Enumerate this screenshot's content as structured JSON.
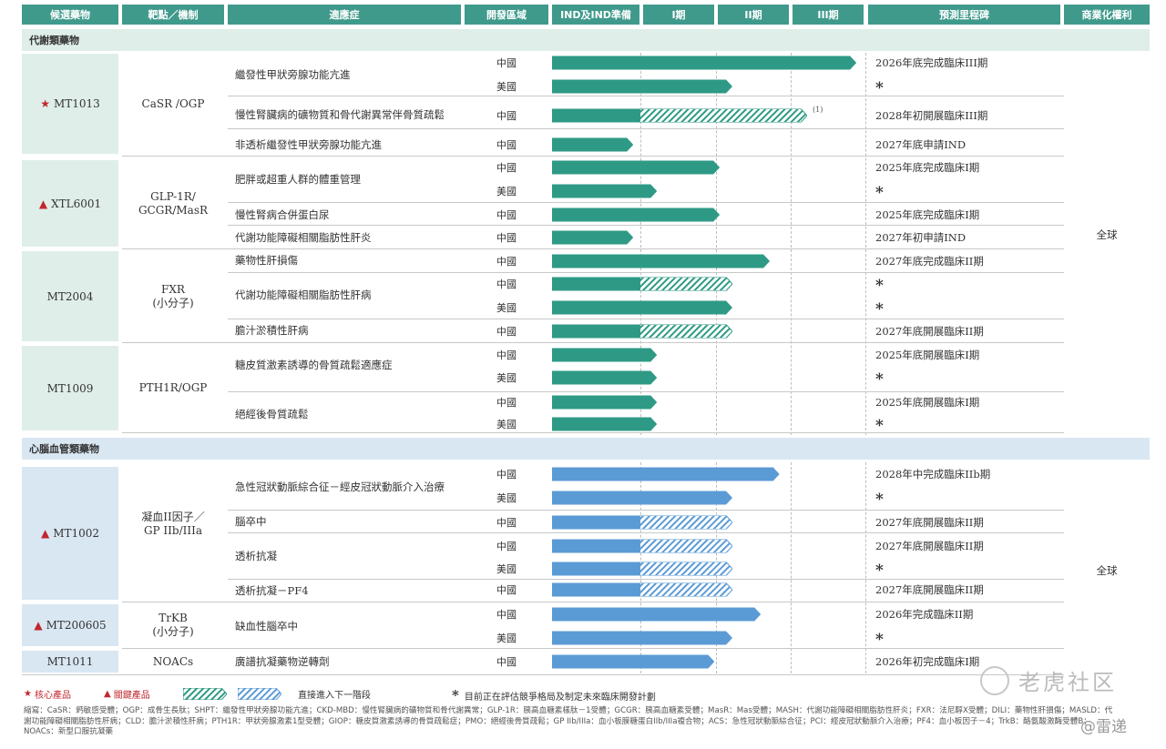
{
  "headers": [
    "候選藥物",
    "靶點／機制",
    "適應症",
    "開發區域",
    "IND及IND準備",
    "I期",
    "II期",
    "III期",
    "預測里程碑",
    "商業化權利"
  ],
  "sections": {
    "metabolic": "代謝類藥物",
    "cardiovascular": "心腦血管類藥物"
  },
  "candidates": [
    {
      "name": "MT1013",
      "marker": "★"
    },
    {
      "name": "XTL6001",
      "marker": "▲"
    },
    {
      "name": "MT2004",
      "marker": ""
    },
    {
      "name": "MT1009",
      "marker": ""
    },
    {
      "name": "MT1002",
      "marker": "▲"
    },
    {
      "name": "MT200605",
      "marker": "▲"
    },
    {
      "name": "MT1011",
      "marker": ""
    }
  ],
  "targets": [
    "CaSR /OGP",
    "GLP-1R/\nGCGR/MasR",
    "FXR\n(小分子)",
    "PTH1R/OGP",
    "凝血II因子／\nGP IIb/IIIa",
    "TrKB\n(小分子)",
    "NOACs"
  ],
  "indications": [
    "繼發性甲狀旁腺功能亢進",
    "慢性腎臟病的礦物質和骨代謝異常伴骨質疏鬆",
    "非透析繼發性甲狀旁腺功能亢進",
    "肥胖或超重人群的體重管理",
    "慢性腎病合併蛋白尿",
    "代謝功能障礙相關脂肪性肝炎",
    "藥物性肝損傷",
    "代謝功能障礙相關脂肪性肝病",
    "膽汁淤積性肝病",
    "糖皮質激素誘導的骨質疏鬆適應症",
    "絕經後骨質疏鬆",
    "急性冠狀動脈綜合征－經皮冠狀動脈介入治療",
    "腦卒中",
    "透析抗凝",
    "透析抗凝－PF4",
    "缺血性腦卒中",
    "廣譜抗凝藥物逆轉劑"
  ],
  "regions": {
    "cn": "中國",
    "us": "美國"
  },
  "colors": {
    "green": "#2e9a85",
    "blue": "#5b9bd5",
    "header": "#3f9a8c",
    "star": "#c0272d"
  },
  "pipeline_rows": [
    {
      "region": "cn",
      "progress": 3.88,
      "hatch": null,
      "color": "green",
      "milestone": "2026年底完成臨床III期"
    },
    {
      "region": "us",
      "progress": 2.22,
      "hatch": null,
      "color": "green",
      "milestone": "*"
    },
    {
      "region": "cn",
      "progress": 3.22,
      "hatch": [
        1.0,
        3.22
      ],
      "color": "green",
      "milestone": "2028年初開展臨床III期",
      "note": "(1)"
    },
    {
      "region": "cn",
      "progress": 0.92,
      "hatch": null,
      "color": "green",
      "milestone": "2027年底申請IND"
    },
    {
      "region": "cn",
      "progress": 2.05,
      "hatch": null,
      "color": "green",
      "milestone": "2025年底完成臨床I期"
    },
    {
      "region": "us",
      "progress": 1.22,
      "hatch": null,
      "color": "green",
      "milestone": "*"
    },
    {
      "region": "cn",
      "progress": 2.05,
      "hatch": null,
      "color": "green",
      "milestone": "2025年底完成臨床I期"
    },
    {
      "region": "cn",
      "progress": 0.92,
      "hatch": null,
      "color": "green",
      "milestone": "2027年初申請IND"
    },
    {
      "region": "cn",
      "progress": 2.72,
      "hatch": null,
      "color": "green",
      "milestone": "2027年底完成臨床II期"
    },
    {
      "region": "cn",
      "progress": 2.22,
      "hatch": [
        1.0,
        2.22
      ],
      "color": "green",
      "milestone": "*"
    },
    {
      "region": "us",
      "progress": 2.22,
      "hatch": null,
      "color": "green",
      "milestone": "*"
    },
    {
      "region": "cn",
      "progress": 2.22,
      "hatch": [
        1.0,
        2.22
      ],
      "color": "green",
      "milestone": "2027年底開展臨床II期"
    },
    {
      "region": "cn",
      "progress": 1.22,
      "hatch": null,
      "color": "green",
      "milestone": "2025年底開展臨床I期"
    },
    {
      "region": "us",
      "progress": 1.22,
      "hatch": null,
      "color": "green",
      "milestone": "*"
    },
    {
      "region": "cn",
      "progress": 1.22,
      "hatch": null,
      "color": "green",
      "milestone": "2025年底開展臨床I期"
    },
    {
      "region": "us",
      "progress": 1.22,
      "hatch": null,
      "color": "green",
      "milestone": "*"
    },
    {
      "region": "cn",
      "progress": 2.85,
      "hatch": null,
      "color": "blue",
      "milestone": "2028年中完成臨床IIb期"
    },
    {
      "region": "us",
      "progress": 2.22,
      "hatch": null,
      "color": "blue",
      "milestone": "*"
    },
    {
      "region": "cn",
      "progress": 2.22,
      "hatch": [
        1.0,
        2.22
      ],
      "color": "blue",
      "milestone": "2027年底開展臨床II期"
    },
    {
      "region": "cn",
      "progress": 2.22,
      "hatch": [
        1.0,
        2.22
      ],
      "color": "blue",
      "milestone": "2027年底開展臨床II期"
    },
    {
      "region": "us",
      "progress": 2.22,
      "hatch": [
        1.0,
        2.22
      ],
      "color": "blue",
      "milestone": "*"
    },
    {
      "region": "cn",
      "progress": 2.22,
      "hatch": [
        1.0,
        2.22
      ],
      "color": "blue",
      "milestone": "2027年底開展臨床II期"
    },
    {
      "region": "cn",
      "progress": 2.6,
      "hatch": null,
      "color": "blue",
      "milestone": "2026年完成臨床II期"
    },
    {
      "region": "us",
      "progress": 2.22,
      "hatch": null,
      "color": "blue",
      "milestone": "*"
    },
    {
      "region": "cn",
      "progress": 1.98,
      "hatch": null,
      "color": "blue",
      "milestone": "2026年初完成臨床I期"
    }
  ],
  "rights": [
    "全球",
    "全球"
  ],
  "legend": {
    "core": "核心產品",
    "key": "關鍵產品",
    "direct": "直接進入下一階段",
    "star_note": "目前正在評估競爭格局及制定未來臨床開發計劃"
  },
  "footnote": "縮寫：CaSR：鈣敏感受體；OGP：成骨生長肽；SHPT：繼發性甲狀旁腺功能亢進；CKD-MBD：慢性腎臟病的礦物質和骨代謝異常；GLP-1R：胰高血糖素樣肽－1受體；GCGR：胰高血糖素受體；MasR：Mas受體；MASH：代謝功能障礙相關脂肪性肝炎；FXR：法尼醇X受體；DILI：藥物性肝損傷；MASLD：代謝功能障礙相關脂肪性肝病；CLD：膽汁淤積性肝病；PTH1R：甲狀旁腺激素1型受體；GIOP：糖皮質激素誘導的骨質疏鬆症；PMO：絕經後骨質疏鬆；GP IIb/IIIa：血小板膜糖蛋白IIb/IIIa複合物；ACS：急性冠狀動脈綜合征；PCI：經皮冠狀動脈介入治療；PF4：血小板因子－4；TrkB：酪氨酸激酶受體B；NOACs：新型口服抗凝藥",
  "watermark": {
    "brand": "老虎社区",
    "handle": "@雷递"
  }
}
